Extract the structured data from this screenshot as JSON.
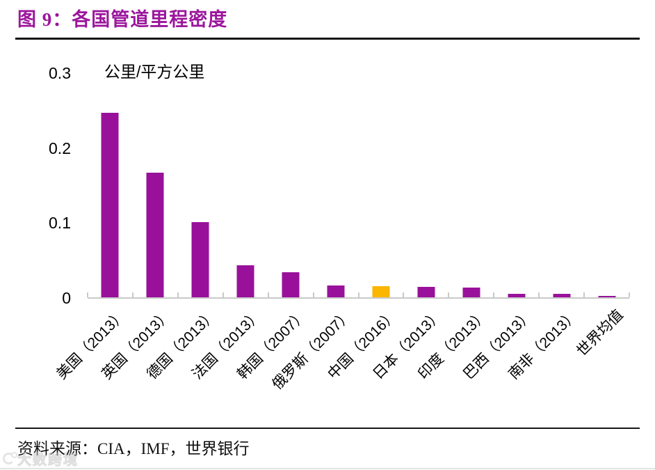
{
  "figure": {
    "title": "图 9：各国管道里程密度",
    "source_label": "资料来源：CIA，IMF，世界银行",
    "watermark": "大数跨境"
  },
  "chart_data": {
    "type": "bar",
    "title": "各国管道里程密度",
    "unit_label": "公里/平方公里",
    "categories": [
      "美国（2013）",
      "英国（2013）",
      "德国（2013）",
      "法国（2013）",
      "韩国（2007）",
      "俄罗斯（2007）",
      "中国（2016）",
      "日本（2013）",
      "印度（2013）",
      "巴西（2013）",
      "南非（2013）",
      "世界均值"
    ],
    "values": [
      0.246,
      0.166,
      0.1,
      0.043,
      0.033,
      0.016,
      0.015,
      0.014,
      0.013,
      0.005,
      0.005,
      0.002
    ],
    "bar_colors": [
      "#99119A",
      "#99119A",
      "#99119A",
      "#99119A",
      "#99119A",
      "#99119A",
      "#FAB600",
      "#99119A",
      "#99119A",
      "#99119A",
      "#99119A",
      "#99119A"
    ],
    "highlight_index": 6,
    "accent_purple": "#99119A",
    "accent_orange": "#FAB600",
    "axis_color": "#C9C9C9",
    "title_color": "#9B169C",
    "yticks": [
      0,
      0.1,
      0.2,
      0.3
    ],
    "ylim": [
      0,
      0.3
    ],
    "xlabel": "",
    "ylabel": "公里/平方公里",
    "grid": false,
    "legend": "none",
    "x_label_rotation_deg": 45
  }
}
